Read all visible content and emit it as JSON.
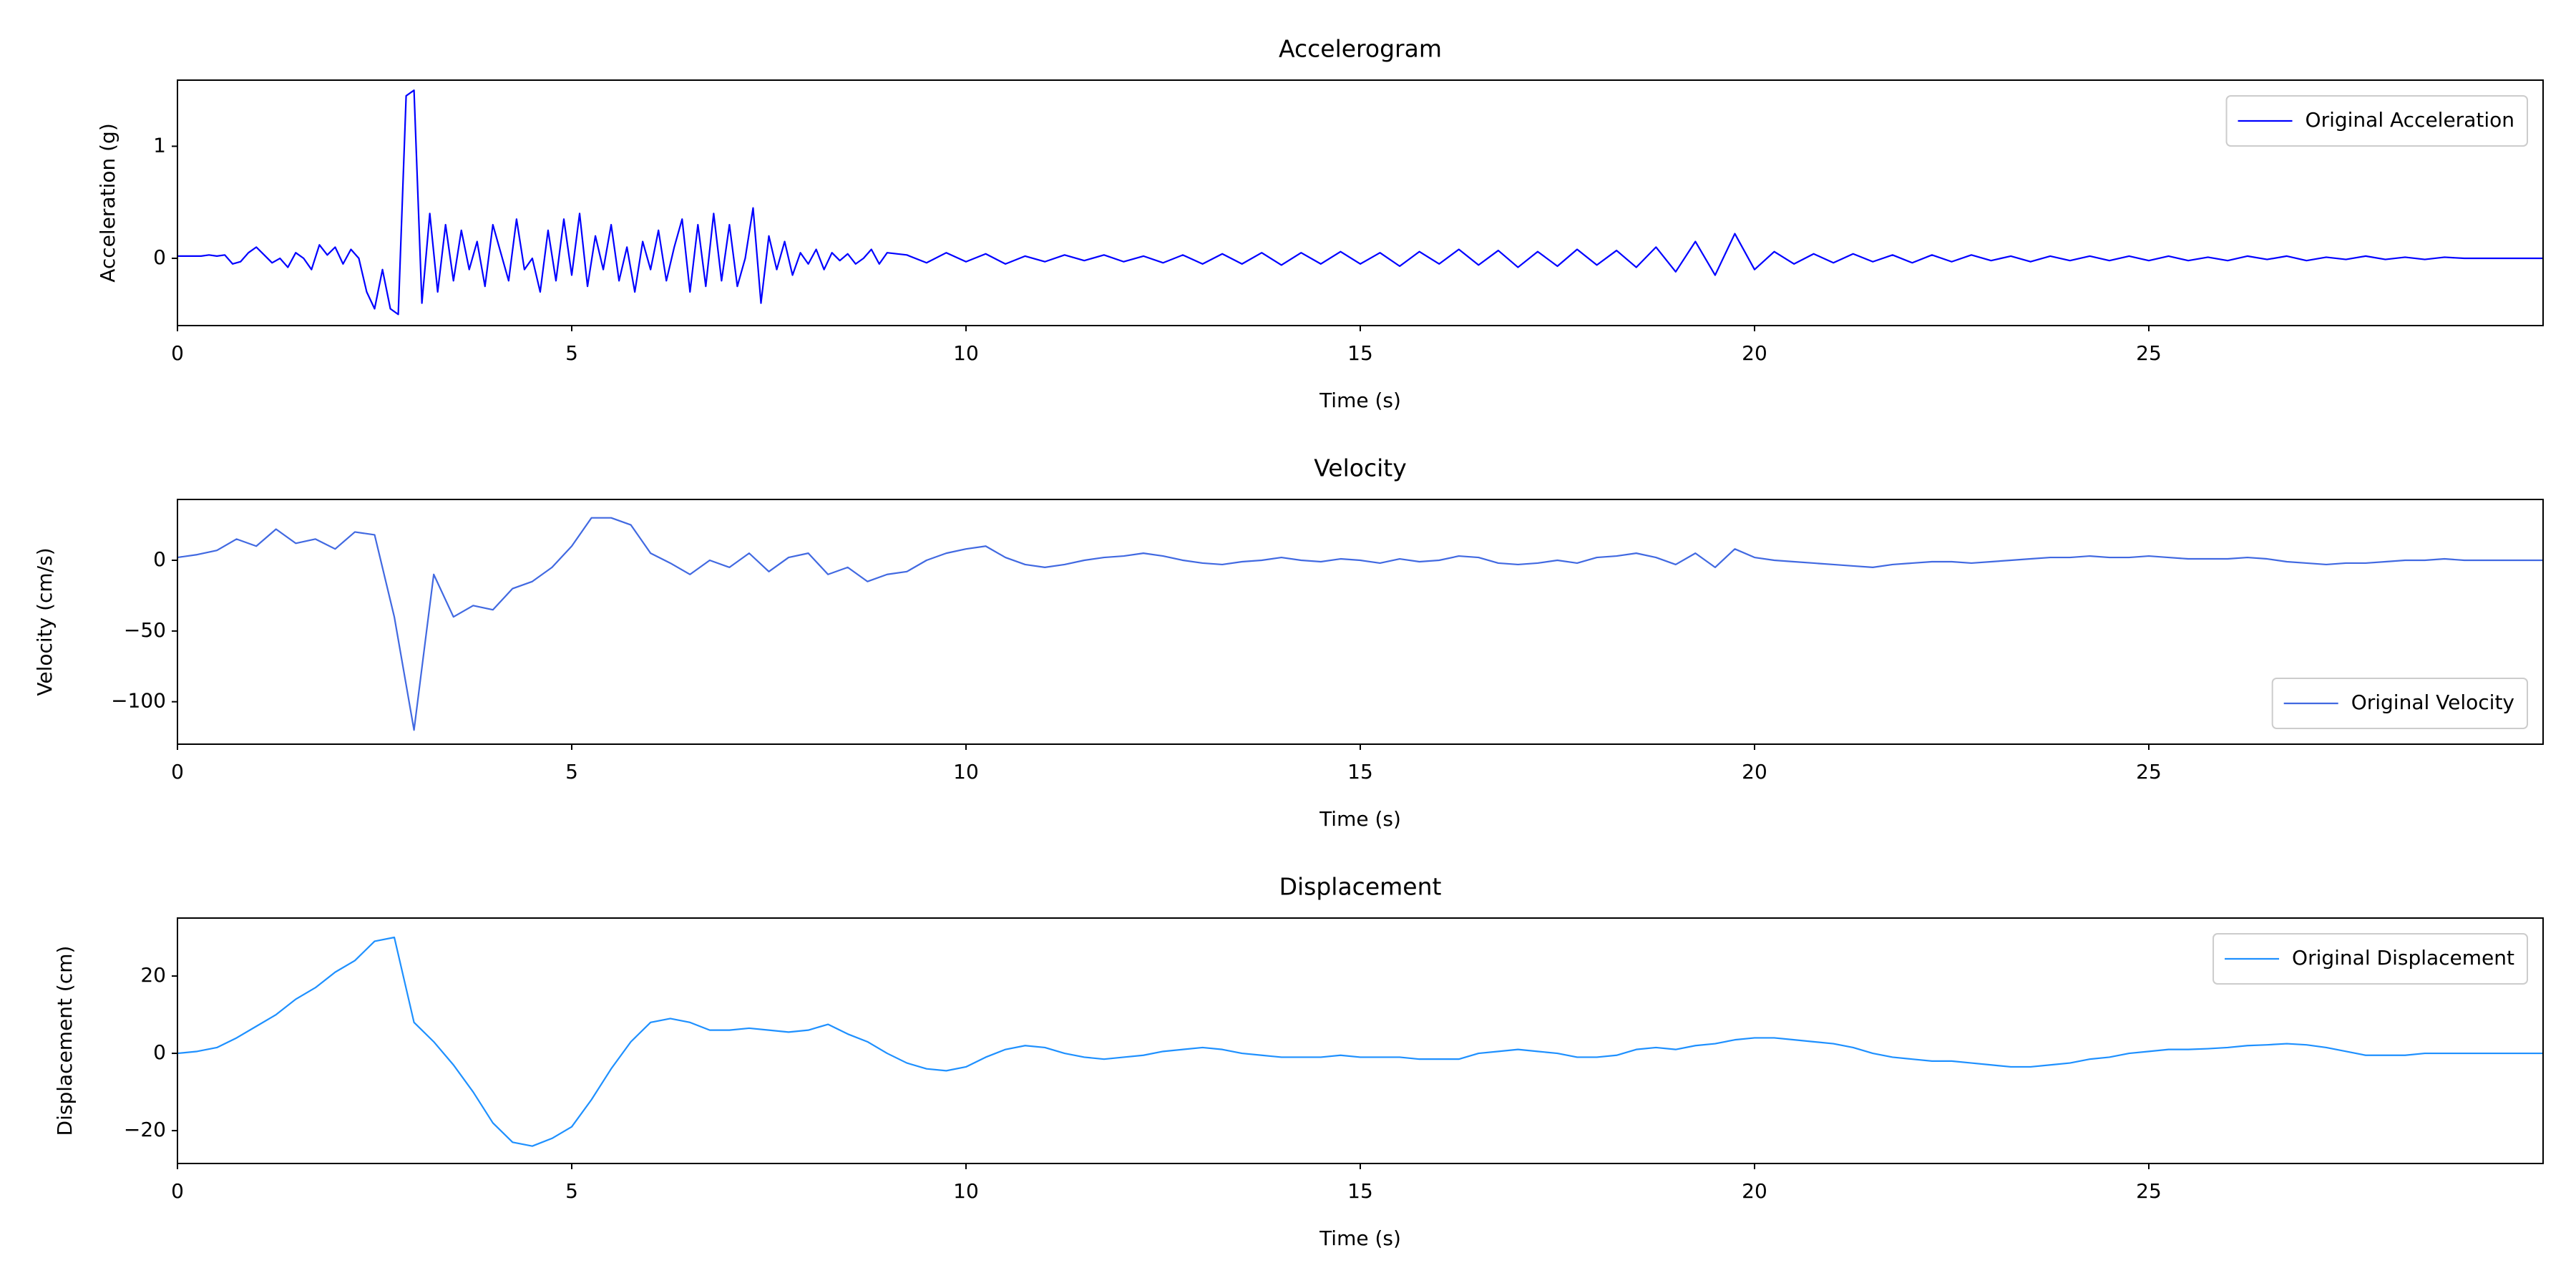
{
  "chart_data": [
    {
      "type": "line",
      "title": "Accelerogram",
      "xlabel": "Time (s)",
      "ylabel": "Acceleration (g)",
      "xlim": [
        0,
        30
      ],
      "ylim": [
        -0.6,
        1.59
      ],
      "xticks": [
        0,
        5,
        10,
        15,
        20,
        25
      ],
      "yticks": [
        0,
        1
      ],
      "legend": "upper right",
      "x": [
        0,
        0.1,
        0.2,
        0.3,
        0.4,
        0.5,
        0.6,
        0.7,
        0.8,
        0.9,
        1.0,
        1.1,
        1.2,
        1.3,
        1.4,
        1.5,
        1.6,
        1.7,
        1.8,
        1.9,
        2.0,
        2.1,
        2.2,
        2.3,
        2.4,
        2.5,
        2.6,
        2.7,
        2.8,
        2.9,
        3.0,
        3.1,
        3.2,
        3.3,
        3.4,
        3.5,
        3.6,
        3.7,
        3.8,
        3.9,
        4.0,
        4.1,
        4.2,
        4.3,
        4.4,
        4.5,
        4.6,
        4.7,
        4.8,
        4.9,
        5.0,
        5.1,
        5.2,
        5.3,
        5.4,
        5.5,
        5.6,
        5.7,
        5.8,
        5.9,
        6.0,
        6.1,
        6.2,
        6.3,
        6.4,
        6.5,
        6.6,
        6.7,
        6.8,
        6.9,
        7.0,
        7.1,
        7.2,
        7.3,
        7.4,
        7.5,
        7.6,
        7.7,
        7.8,
        7.9,
        8.0,
        8.1,
        8.2,
        8.3,
        8.4,
        8.5,
        8.6,
        8.7,
        8.8,
        8.9,
        9.0,
        9.25,
        9.5,
        9.75,
        10.0,
        10.25,
        10.5,
        10.75,
        11.0,
        11.25,
        11.5,
        11.75,
        12.0,
        12.25,
        12.5,
        12.75,
        13.0,
        13.25,
        13.5,
        13.75,
        14.0,
        14.25,
        14.5,
        14.75,
        15.0,
        15.25,
        15.5,
        15.75,
        16.0,
        16.25,
        16.5,
        16.75,
        17.0,
        17.25,
        17.5,
        17.75,
        18.0,
        18.25,
        18.5,
        18.75,
        19.0,
        19.25,
        19.5,
        19.75,
        20.0,
        20.25,
        20.5,
        20.75,
        21.0,
        21.25,
        21.5,
        21.75,
        22.0,
        22.25,
        22.5,
        22.75,
        23.0,
        23.25,
        23.5,
        23.75,
        24.0,
        24.25,
        24.5,
        24.75,
        25.0,
        25.25,
        25.5,
        25.75,
        26.0,
        26.25,
        26.5,
        26.75,
        27.0,
        27.25,
        27.5,
        27.75,
        28.0,
        28.25,
        28.5,
        28.75,
        29.0,
        29.25,
        29.5,
        29.75,
        30.0
      ],
      "series": [
        {
          "name": "Original Acceleration",
          "color": "#0000ff",
          "values": [
            0.02,
            0.02,
            0.02,
            0.02,
            0.03,
            0.02,
            0.03,
            -0.05,
            -0.03,
            0.05,
            0.1,
            0.03,
            -0.04,
            0.0,
            -0.08,
            0.05,
            0.0,
            -0.1,
            0.12,
            0.03,
            0.1,
            -0.05,
            0.08,
            0.0,
            -0.3,
            -0.45,
            -0.1,
            -0.45,
            -0.5,
            1.45,
            1.5,
            -0.4,
            0.4,
            -0.3,
            0.3,
            -0.2,
            0.25,
            -0.1,
            0.15,
            -0.25,
            0.3,
            0.05,
            -0.2,
            0.35,
            -0.1,
            0.0,
            -0.3,
            0.25,
            -0.2,
            0.35,
            -0.15,
            0.4,
            -0.25,
            0.2,
            -0.1,
            0.3,
            -0.2,
            0.1,
            -0.3,
            0.15,
            -0.1,
            0.25,
            -0.2,
            0.1,
            0.35,
            -0.3,
            0.3,
            -0.25,
            0.4,
            -0.2,
            0.3,
            -0.25,
            0.0,
            0.45,
            -0.4,
            0.2,
            -0.1,
            0.15,
            -0.15,
            0.05,
            -0.05,
            0.08,
            -0.1,
            0.05,
            -0.02,
            0.04,
            -0.05,
            0.0,
            0.08,
            -0.05,
            0.05,
            0.03,
            -0.04,
            0.05,
            -0.03,
            0.04,
            -0.05,
            0.02,
            -0.03,
            0.03,
            -0.02,
            0.03,
            -0.03,
            0.02,
            -0.04,
            0.03,
            -0.05,
            0.04,
            -0.05,
            0.05,
            -0.06,
            0.05,
            -0.05,
            0.06,
            -0.05,
            0.05,
            -0.07,
            0.06,
            -0.05,
            0.08,
            -0.06,
            0.07,
            -0.08,
            0.06,
            -0.07,
            0.08,
            -0.06,
            0.07,
            -0.08,
            0.1,
            -0.12,
            0.15,
            -0.15,
            0.22,
            -0.1,
            0.06,
            -0.05,
            0.04,
            -0.04,
            0.04,
            -0.03,
            0.03,
            -0.04,
            0.03,
            -0.03,
            0.03,
            -0.02,
            0.02,
            -0.03,
            0.02,
            -0.02,
            0.02,
            -0.02,
            0.02,
            -0.02,
            0.02,
            -0.02,
            0.01,
            -0.02,
            0.02,
            -0.01,
            0.02,
            -0.02,
            0.01,
            -0.01,
            0.02,
            -0.01,
            0.01,
            -0.01,
            0.01,
            0,
            0,
            0,
            0,
            0
          ]
        }
      ]
    },
    {
      "type": "line",
      "title": "Velocity",
      "xlabel": "Time (s)",
      "ylabel": "Velocity (cm/s)",
      "xlim": [
        0,
        30
      ],
      "ylim": [
        -130,
        43
      ],
      "xticks": [
        0,
        5,
        10,
        15,
        20,
        25
      ],
      "yticks": [
        {
          "value": -100,
          "label": "−100"
        },
        {
          "value": -50,
          "label": "−50"
        },
        0
      ],
      "legend": "lower right",
      "x": [
        0,
        0.25,
        0.5,
        0.75,
        1.0,
        1.25,
        1.5,
        1.75,
        2.0,
        2.25,
        2.5,
        2.75,
        3.0,
        3.25,
        3.5,
        3.75,
        4.0,
        4.25,
        4.5,
        4.75,
        5.0,
        5.25,
        5.5,
        5.75,
        6.0,
        6.25,
        6.5,
        6.75,
        7.0,
        7.25,
        7.5,
        7.75,
        8.0,
        8.25,
        8.5,
        8.75,
        9.0,
        9.25,
        9.5,
        9.75,
        10.0,
        10.25,
        10.5,
        10.75,
        11.0,
        11.25,
        11.5,
        11.75,
        12.0,
        12.25,
        12.5,
        12.75,
        13.0,
        13.25,
        13.5,
        13.75,
        14.0,
        14.25,
        14.5,
        14.75,
        15.0,
        15.25,
        15.5,
        15.75,
        16.0,
        16.25,
        16.5,
        16.75,
        17.0,
        17.25,
        17.5,
        17.75,
        18.0,
        18.25,
        18.5,
        18.75,
        19.0,
        19.25,
        19.5,
        19.75,
        20.0,
        20.25,
        20.5,
        20.75,
        21.0,
        21.25,
        21.5,
        21.75,
        22.0,
        22.25,
        22.5,
        22.75,
        23.0,
        23.25,
        23.5,
        23.75,
        24.0,
        24.25,
        24.5,
        24.75,
        25.0,
        25.25,
        25.5,
        25.75,
        26.0,
        26.25,
        26.5,
        26.75,
        27.0,
        27.25,
        27.5,
        27.75,
        28.0,
        28.25,
        28.5,
        28.75,
        29.0,
        29.25,
        29.5,
        29.75,
        30.0
      ],
      "series": [
        {
          "name": "Original Velocity",
          "color": "#4169e1",
          "values": [
            2,
            4,
            7,
            15,
            10,
            22,
            12,
            15,
            8,
            20,
            18,
            -40,
            -120,
            -10,
            -40,
            -32,
            -35,
            -20,
            -15,
            -5,
            10,
            30,
            30,
            25,
            5,
            -2,
            -10,
            0,
            -5,
            5,
            -8,
            2,
            5,
            -10,
            -5,
            -15,
            -10,
            -8,
            0,
            5,
            8,
            10,
            2,
            -3,
            -5,
            -3,
            0,
            2,
            3,
            5,
            3,
            0,
            -2,
            -3,
            -1,
            0,
            2,
            0,
            -1,
            1,
            0,
            -2,
            1,
            -1,
            0,
            3,
            2,
            -2,
            -3,
            -2,
            0,
            -2,
            2,
            3,
            5,
            2,
            -3,
            5,
            -5,
            8,
            2,
            0,
            -1,
            -2,
            -3,
            -4,
            -5,
            -3,
            -2,
            -1,
            -1,
            -2,
            -1,
            0,
            1,
            2,
            2,
            3,
            2,
            2,
            3,
            2,
            1,
            1,
            1,
            2,
            1,
            -1,
            -2,
            -3,
            -2,
            -2,
            -1,
            0,
            0,
            1,
            0,
            0,
            0,
            0,
            0
          ]
        }
      ]
    },
    {
      "type": "line",
      "title": "Displacement",
      "xlabel": "Time (s)",
      "ylabel": "Displacement (cm)",
      "xlim": [
        0,
        30
      ],
      "ylim": [
        -28.5,
        35
      ],
      "xticks": [
        0,
        5,
        10,
        15,
        20,
        25
      ],
      "yticks": [
        {
          "value": -20,
          "label": "−20"
        },
        0,
        20
      ],
      "legend": "upper right",
      "x": [
        0,
        0.25,
        0.5,
        0.75,
        1.0,
        1.25,
        1.5,
        1.75,
        2.0,
        2.25,
        2.5,
        2.75,
        3.0,
        3.25,
        3.5,
        3.75,
        4.0,
        4.25,
        4.5,
        4.75,
        5.0,
        5.25,
        5.5,
        5.75,
        6.0,
        6.25,
        6.5,
        6.75,
        7.0,
        7.25,
        7.5,
        7.75,
        8.0,
        8.25,
        8.5,
        8.75,
        9.0,
        9.25,
        9.5,
        9.75,
        10.0,
        10.25,
        10.5,
        10.75,
        11.0,
        11.25,
        11.5,
        11.75,
        12.0,
        12.25,
        12.5,
        12.75,
        13.0,
        13.25,
        13.5,
        13.75,
        14.0,
        14.25,
        14.5,
        14.75,
        15.0,
        15.25,
        15.5,
        15.75,
        16.0,
        16.25,
        16.5,
        16.75,
        17.0,
        17.25,
        17.5,
        17.75,
        18.0,
        18.25,
        18.5,
        18.75,
        19.0,
        19.25,
        19.5,
        19.75,
        20.0,
        20.25,
        20.5,
        20.75,
        21.0,
        21.25,
        21.5,
        21.75,
        22.0,
        22.25,
        22.5,
        22.75,
        23.0,
        23.25,
        23.5,
        23.75,
        24.0,
        24.25,
        24.5,
        24.75,
        25.0,
        25.25,
        25.5,
        25.75,
        26.0,
        26.25,
        26.5,
        26.75,
        27.0,
        27.25,
        27.5,
        27.75,
        28.0,
        28.25,
        28.5,
        28.75,
        29.0,
        29.25,
        29.5,
        29.75,
        30.0
      ],
      "series": [
        {
          "name": "Original Displacement",
          "color": "#1e90ff",
          "values": [
            0,
            0.5,
            1.5,
            4,
            7,
            10,
            14,
            17,
            21,
            24,
            29,
            30,
            8,
            3,
            -3,
            -10,
            -18,
            -23,
            -24,
            -22,
            -19,
            -12,
            -4,
            3,
            8,
            9,
            8,
            6,
            6,
            6.5,
            6,
            5.5,
            6,
            7.5,
            5,
            3,
            0,
            -2.5,
            -4,
            -4.5,
            -3.5,
            -1,
            1,
            2,
            1.5,
            0,
            -1,
            -1.5,
            -1,
            -0.5,
            0.5,
            1,
            1.5,
            1,
            0,
            -0.5,
            -1,
            -1,
            -1,
            -0.5,
            -1,
            -1,
            -1,
            -1.5,
            -1.5,
            -1.5,
            0,
            0.5,
            1,
            0.5,
            0,
            -1,
            -1,
            -0.5,
            1,
            1.5,
            1,
            2,
            2.5,
            3.5,
            4,
            4,
            3.5,
            3,
            2.5,
            1.5,
            0,
            -1,
            -1.5,
            -2,
            -2,
            -2.5,
            -3,
            -3.5,
            -3.5,
            -3,
            -2.5,
            -1.5,
            -1,
            0,
            0.5,
            1,
            1,
            1.2,
            1.5,
            2,
            2.2,
            2.5,
            2.2,
            1.5,
            0.5,
            -0.5,
            -0.5,
            -0.5,
            0,
            0,
            0,
            0,
            0,
            0,
            0
          ]
        }
      ]
    }
  ]
}
